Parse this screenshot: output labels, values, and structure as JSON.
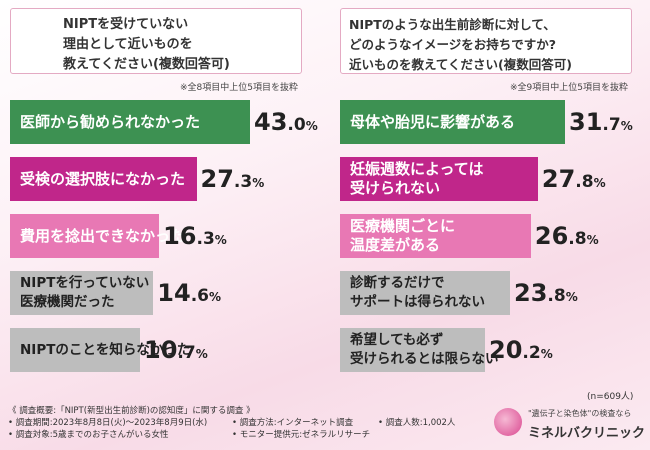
{
  "colors": {
    "green": "#3d9152",
    "magenta": "#c0268a",
    "pink": "#e878b4",
    "gray": "#bdbdbd"
  },
  "chart_data": [
    {
      "type": "bar",
      "title": [
        "NIPTを受けていない",
        "理由として近いものを",
        "教えてください(複数回答可)"
      ],
      "note": "※全8項目中上位5項目を抜粋",
      "categories": [
        [
          "医師から勧められなかった"
        ],
        [
          "受検の選択肢になかった"
        ],
        [
          "費用を捻出できなかった"
        ],
        [
          "NIPTを行っていない",
          "医療機関だった"
        ],
        [
          "NIPTのことを知らなかった"
        ]
      ],
      "values": [
        43.0,
        27.3,
        16.3,
        14.6,
        10.7
      ],
      "value_labels": [
        {
          "int": "43",
          "dec": ".0",
          "unit": "%"
        },
        {
          "int": "27",
          "dec": ".3",
          "unit": "%"
        },
        {
          "int": "16",
          "dec": ".3",
          "unit": "%"
        },
        {
          "int": "14",
          "dec": ".6",
          "unit": "%"
        },
        {
          "int": "10",
          "dec": ".7",
          "unit": "%"
        }
      ],
      "bar_colors": [
        "#3d9152",
        "#c0268a",
        "#e878b4",
        "#bdbdbd",
        "#bdbdbd"
      ],
      "xlim": [
        0,
        43.0
      ]
    },
    {
      "type": "bar",
      "title": [
        "NIPTのような出生前診断に対して、",
        "どのようなイメージをお持ちですか?",
        "近いものを教えてください(複数回答可)"
      ],
      "note": "※全9項目中上位5項目を抜粋",
      "categories": [
        [
          "母体や胎児に影響がある"
        ],
        [
          "妊娠週数によっては",
          "受けられない"
        ],
        [
          "医療機関ごとに",
          "温度差がある"
        ],
        [
          "診断するだけで",
          "サポートは得られない"
        ],
        [
          "希望しても必ず",
          "受けられるとは限らない"
        ]
      ],
      "values": [
        31.7,
        27.8,
        26.8,
        23.8,
        20.2
      ],
      "value_labels": [
        {
          "int": "31",
          "dec": ".7",
          "unit": "%"
        },
        {
          "int": "27",
          "dec": ".8",
          "unit": "%"
        },
        {
          "int": "26",
          "dec": ".8",
          "unit": "%"
        },
        {
          "int": "23",
          "dec": ".8",
          "unit": "%"
        },
        {
          "int": "20",
          "dec": ".2",
          "unit": "%"
        }
      ],
      "bar_colors": [
        "#3d9152",
        "#c0268a",
        "#e878b4",
        "#bdbdbd",
        "#bdbdbd"
      ],
      "xlim": [
        0,
        31.7
      ]
    }
  ],
  "sample_size": "(n=609人)",
  "footer": {
    "title": "《 調査概要:「NIPT(新型出生前診断)の認知度」に関する調査 》",
    "items": [
      "• 調査期間:2023年8月8日(火)〜2023年8月9日(水)",
      "• 調査方法:インターネット調査",
      "• 調査人数:1,002人",
      "• 調査対象:5歳までのお子さんがいる女性",
      "• モニター提供元:ゼネラルリサーチ"
    ]
  },
  "logo": {
    "tagline": "\"遺伝子と染色体\"の検査なら",
    "name": "ミネルバクリニック"
  }
}
